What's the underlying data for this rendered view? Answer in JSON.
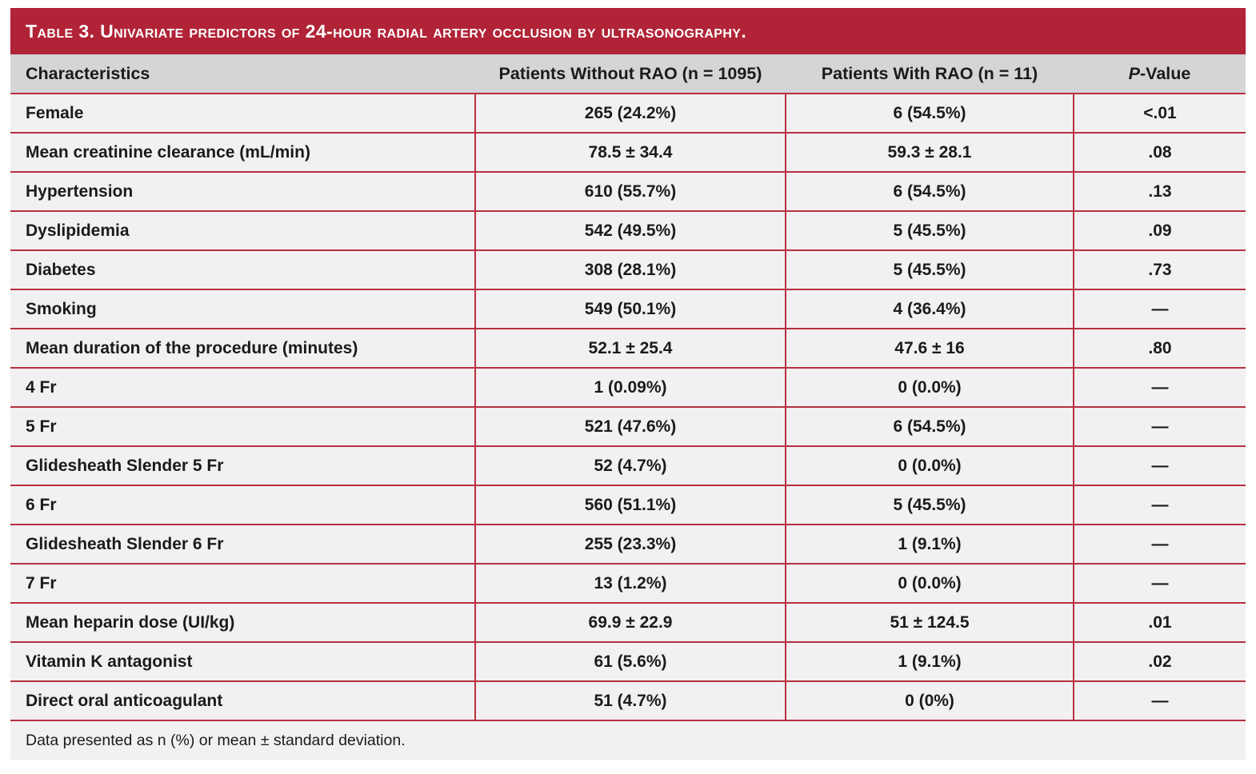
{
  "title": "Table 3. Univariate predictors of 24-hour radial artery occlusion by ultrasonography.",
  "columns": {
    "characteristics": "Characteristics",
    "without_rao": "Patients Without RAO (n = 1095)",
    "with_rao": "Patients With RAO (n = 11)",
    "p_italic": "P",
    "p_rest": "-Value"
  },
  "rows": [
    {
      "label": "Female",
      "without": "265 (24.2%)",
      "with": "6 (54.5%)",
      "p": "<.01"
    },
    {
      "label": "Mean creatinine clearance (mL/min)",
      "without": "78.5 ± 34.4",
      "with": "59.3 ± 28.1",
      "p": ".08"
    },
    {
      "label": "Hypertension",
      "without": "610 (55.7%)",
      "with": "6 (54.5%)",
      "p": ".13"
    },
    {
      "label": "Dyslipidemia",
      "without": "542 (49.5%)",
      "with": "5 (45.5%)",
      "p": ".09"
    },
    {
      "label": "Diabetes",
      "without": "308 (28.1%)",
      "with": "5 (45.5%)",
      "p": ".73"
    },
    {
      "label": "Smoking",
      "without": "549 (50.1%)",
      "with": "4 (36.4%)",
      "p": "—"
    },
    {
      "label": "Mean duration of the procedure (minutes)",
      "without": "52.1 ± 25.4",
      "with": "47.6 ± 16",
      "p": ".80"
    },
    {
      "label": "4 Fr",
      "without": "1 (0.09%)",
      "with": "0 (0.0%)",
      "p": "—"
    },
    {
      "label": "5 Fr",
      "without": "521 (47.6%)",
      "with": "6 (54.5%)",
      "p": "—"
    },
    {
      "label": "Glidesheath Slender 5 Fr",
      "without": "52 (4.7%)",
      "with": "0 (0.0%)",
      "p": "—"
    },
    {
      "label": "6 Fr",
      "without": "560 (51.1%)",
      "with": "5 (45.5%)",
      "p": "—"
    },
    {
      "label": "Glidesheath Slender 6 Fr",
      "without": "255 (23.3%)",
      "with": "1 (9.1%)",
      "p": "—"
    },
    {
      "label": "7 Fr",
      "without": "13 (1.2%)",
      "with": "0 (0.0%)",
      "p": "—"
    },
    {
      "label": "Mean heparin dose (UI/kg)",
      "without": "69.9 ± 22.9",
      "with": "51 ± 124.5",
      "p": ".01"
    },
    {
      "label": "Vitamin K antagonist",
      "without": "61 (5.6%)",
      "with": "1 (9.1%)",
      "p": ".02"
    },
    {
      "label": "Direct oral anticoagulant",
      "without": "51 (4.7%)",
      "with": "0 (0%)",
      "p": "—"
    }
  ],
  "footnote": "Data presented as n (%) or mean ± standard deviation.",
  "colors": {
    "accent_red": "#b12336",
    "grid_line_red": "#b7303f",
    "header_gray": "#d5d4d6",
    "row_light_gray": "#f2f0f1",
    "page_background": "#ffffff",
    "text": "#1b1b1b"
  }
}
